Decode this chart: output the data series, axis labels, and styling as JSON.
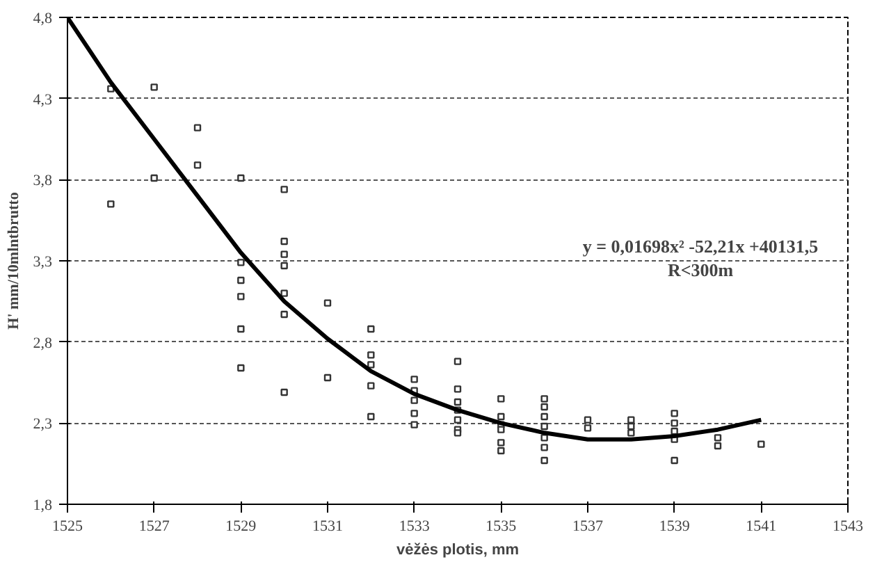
{
  "chart_data": {
    "type": "scatter",
    "xlabel": "vėžės plotis, mm",
    "ylabel": "H' mm/10mlntbrutto",
    "xlim": [
      1525,
      1543
    ],
    "xticks": [
      1525,
      1527,
      1529,
      1531,
      1533,
      1535,
      1537,
      1539,
      1541,
      1543
    ],
    "ylim": [
      1.8,
      4.8
    ],
    "yticks": [
      {
        "value": 1.8,
        "label": "1,8"
      },
      {
        "value": 2.3,
        "label": "2,3"
      },
      {
        "value": 2.8,
        "label": "2,8"
      },
      {
        "value": 3.3,
        "label": "3,3"
      },
      {
        "value": 3.8,
        "label": "3,8"
      },
      {
        "value": 4.3,
        "label": "4,3"
      },
      {
        "value": 4.8,
        "label": "4,8"
      }
    ],
    "grid": "y",
    "annotations": [
      "y = 0,01698x² -52,21x +40131,5",
      "R<300m"
    ],
    "series": [
      {
        "marker": "square",
        "color": "#333333",
        "x": [
          1526,
          1526,
          1527,
          1527,
          1528,
          1528,
          1529,
          1529,
          1529,
          1529,
          1529,
          1529,
          1530,
          1530,
          1530,
          1530,
          1530,
          1530,
          1530,
          1531,
          1531,
          1532,
          1532,
          1532,
          1532,
          1532,
          1533,
          1533,
          1533,
          1533,
          1533,
          1534,
          1534,
          1534,
          1534,
          1534,
          1534,
          1534,
          1535,
          1535,
          1535,
          1535,
          1535,
          1535,
          1536,
          1536,
          1536,
          1536,
          1536,
          1536,
          1536,
          1537,
          1537,
          1538,
          1538,
          1538,
          1539,
          1539,
          1539,
          1539,
          1539,
          1540,
          1540,
          1541
        ],
        "values": [
          4.36,
          3.65,
          4.37,
          3.81,
          4.12,
          3.89,
          3.81,
          3.29,
          3.18,
          3.08,
          2.88,
          2.64,
          3.74,
          3.42,
          3.34,
          3.27,
          3.1,
          2.97,
          2.49,
          3.04,
          2.58,
          2.88,
          2.72,
          2.66,
          2.53,
          2.34,
          2.57,
          2.5,
          2.44,
          2.36,
          2.29,
          2.68,
          2.51,
          2.43,
          2.38,
          2.32,
          2.26,
          2.24,
          2.45,
          2.34,
          2.29,
          2.26,
          2.18,
          2.13,
          2.45,
          2.4,
          2.34,
          2.28,
          2.21,
          2.15,
          2.07,
          2.32,
          2.27,
          2.32,
          2.28,
          2.24,
          2.36,
          2.3,
          2.25,
          2.2,
          2.07,
          2.21,
          2.16,
          2.17
        ]
      },
      {
        "type": "line",
        "color": "#000000",
        "x": [
          1525,
          1526,
          1527,
          1528,
          1529,
          1530,
          1531,
          1532,
          1533,
          1534,
          1535,
          1536,
          1537,
          1538,
          1539,
          1540,
          1541
        ],
        "values": [
          4.8,
          4.4,
          4.05,
          3.7,
          3.35,
          3.05,
          2.82,
          2.62,
          2.48,
          2.38,
          2.3,
          2.24,
          2.2,
          2.2,
          2.22,
          2.26,
          2.32
        ]
      }
    ]
  }
}
